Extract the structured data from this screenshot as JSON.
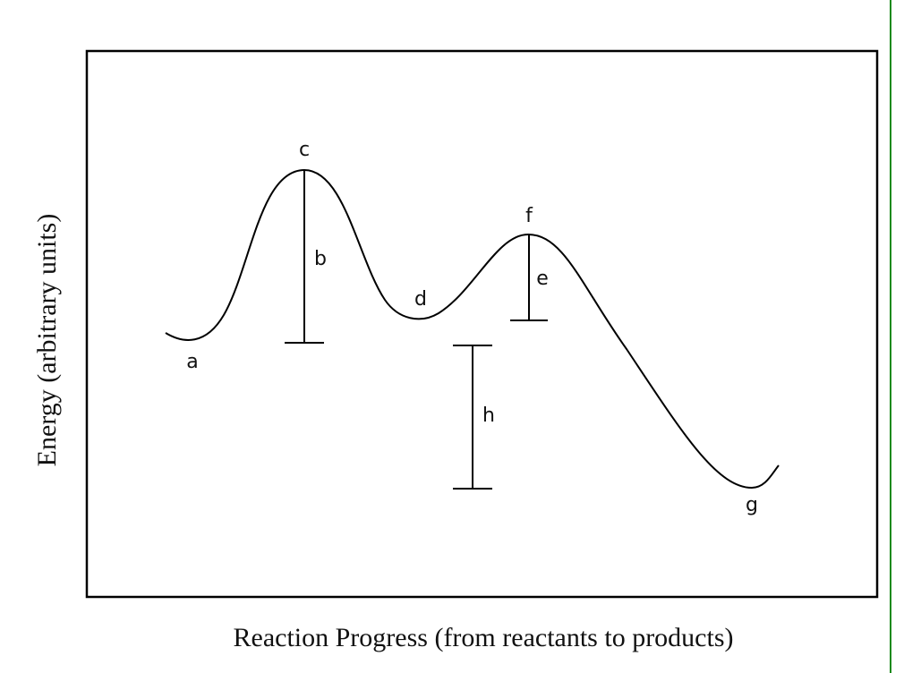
{
  "diagram": {
    "y_axis_label": "Energy (arbitrary units)",
    "x_axis_label": "Reaction Progress (from reactants to products)",
    "labels": [
      "a",
      "b",
      "c",
      "d",
      "e",
      "f",
      "g",
      "h"
    ]
  }
}
